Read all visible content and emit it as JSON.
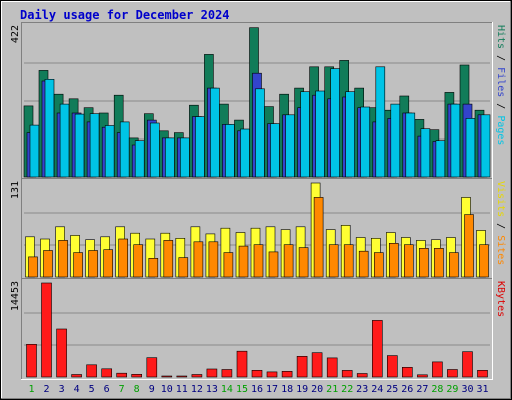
{
  "chart_data": {
    "type": "bar",
    "title": "Daily usage for December 2024",
    "categories": [
      "1",
      "2",
      "3",
      "4",
      "5",
      "6",
      "7",
      "8",
      "9",
      "10",
      "11",
      "12",
      "13",
      "14",
      "15",
      "16",
      "17",
      "18",
      "19",
      "20",
      "21",
      "22",
      "23",
      "24",
      "25",
      "26",
      "27",
      "28",
      "29",
      "30",
      "31"
    ],
    "weekend_days": [
      "1",
      "7",
      "8",
      "14",
      "15",
      "21",
      "22",
      "28",
      "29"
    ],
    "panels": [
      {
        "id": "hits",
        "max_label": "422",
        "max": 422,
        "right_labels": [
          {
            "text": "Hits",
            "color": "#117c59"
          },
          {
            "text": "Files",
            "color": "#3344cc"
          },
          {
            "text": "Pages",
            "color": "#00c4e6"
          }
        ],
        "series": [
          {
            "name": "Hits",
            "color": "#117c59",
            "values": [
              200,
              300,
              233,
              220,
              195,
              180,
              230,
              110,
              178,
              130,
              125,
              202,
              345,
              205,
              160,
              420,
              198,
              233,
              250,
              310,
              310,
              328,
              250,
              195,
              188,
              228,
              162,
              133,
              238,
              315,
              188
            ]
          },
          {
            "name": "Files",
            "color": "#3344cc",
            "values": [
              125,
              270,
              180,
              180,
              155,
              140,
              125,
              90,
              160,
              110,
              110,
              170,
              250,
              148,
              130,
              292,
              150,
              175,
              195,
              230,
              220,
              225,
              195,
              155,
              165,
              180,
              115,
              100,
              205,
              205,
              175
            ]
          },
          {
            "name": "Pages",
            "color": "#00c4e6",
            "values": [
              146,
              275,
              205,
              177,
              178,
              145,
              155,
              102,
              152,
              110,
              110,
              170,
              250,
              148,
              135,
              248,
              150,
              175,
              240,
              242,
              305,
              240,
              197,
              310,
              205,
              180,
              136,
              102,
              205,
              165,
              175
            ]
          }
        ]
      },
      {
        "id": "visits",
        "max_label": "131",
        "max": 131,
        "right_labels": [
          {
            "text": "Visits",
            "color": "#e8d800"
          },
          {
            "text": "Sites",
            "color": "#ff8800"
          }
        ],
        "series": [
          {
            "name": "Visits",
            "color": "#ffff33",
            "values": [
              56,
              53,
              70,
              58,
              52,
              56,
              70,
              61,
              53,
              61,
              54,
              70,
              60,
              68,
              62,
              68,
              70,
              66,
              70,
              131,
              66,
              72,
              55,
              54,
              62,
              55,
              51,
              52,
              55,
              111,
              65
            ]
          },
          {
            "name": "Sites",
            "color": "#ff8800",
            "values": [
              28,
              37,
              51,
              34,
              37,
              38,
              53,
              45,
              26,
              51,
              27,
              49,
              49,
              34,
              43,
              45,
              35,
              45,
              41,
              111,
              45,
              45,
              36,
              34,
              47,
              45,
              40,
              40,
              34,
              87,
              45
            ]
          }
        ]
      },
      {
        "id": "kbytes",
        "max_label": "14453",
        "max": 14453,
        "right_labels": [
          {
            "text": "KBytes",
            "color": "#dd0000"
          }
        ],
        "series": [
          {
            "name": "KBytes",
            "color": "#ff1a1a",
            "values": [
              5022,
              14453,
              7386,
              382,
              1875,
              1264,
              586,
              412,
              2964,
              45,
              120,
              390,
              1236,
              1158,
              3963,
              1031,
              781,
              883,
              3189,
              3732,
              2932,
              1021,
              531,
              8701,
              3292,
              1493,
              337,
              2329,
              1148,
              3889,
              1031
            ]
          }
        ]
      }
    ]
  }
}
